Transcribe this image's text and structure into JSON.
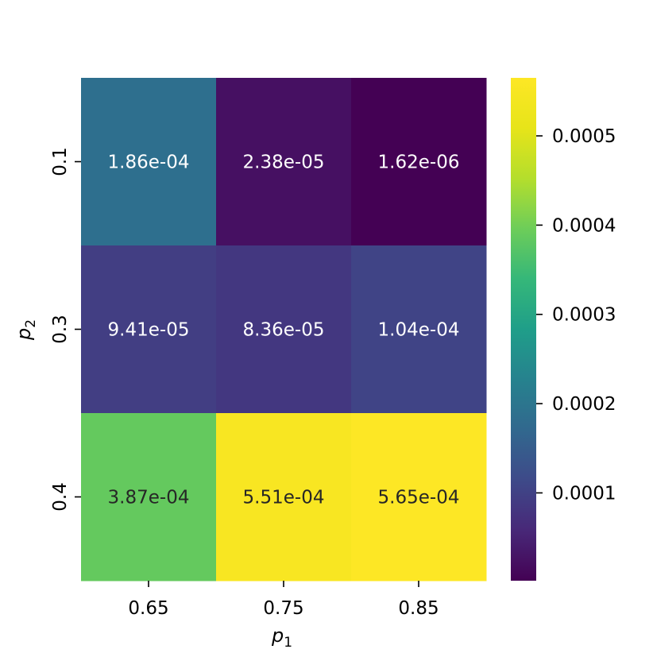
{
  "chart_data": {
    "type": "heatmap",
    "x_categories": [
      "0.65",
      "0.75",
      "0.85"
    ],
    "y_categories": [
      "0.1",
      "0.3",
      "0.4"
    ],
    "values": [
      [
        0.000186,
        2.38e-05,
        1.62e-06
      ],
      [
        9.41e-05,
        8.36e-05,
        0.000104
      ],
      [
        0.000387,
        0.000551,
        0.000565
      ]
    ],
    "cell_labels": [
      [
        "1.86e-04",
        "2.38e-05",
        "1.62e-06"
      ],
      [
        "9.41e-05",
        "8.36e-05",
        "1.04e-04"
      ],
      [
        "3.87e-04",
        "5.51e-04",
        "5.65e-04"
      ]
    ],
    "xlabel": {
      "base": "p",
      "sub": "1"
    },
    "ylabel": {
      "base": "p",
      "sub": "2"
    },
    "colormap": "viridis",
    "colorbar": {
      "vmin": 1.62e-06,
      "vmax": 0.000565,
      "ticks": [
        0.0001,
        0.0002,
        0.0003,
        0.0004,
        0.0005
      ],
      "tick_labels": [
        "0.0001",
        "0.0002",
        "0.0003",
        "0.0004",
        "0.0005"
      ]
    },
    "text_colors": {
      "light": "#ffffff",
      "dark": "#262626"
    }
  }
}
